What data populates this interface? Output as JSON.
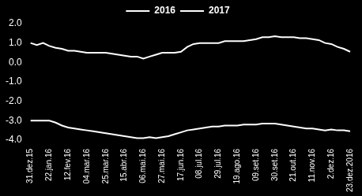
{
  "chart_data": {
    "type": "line",
    "categories": [
      "31.dez.15",
      null,
      null,
      "22.jan.16",
      null,
      null,
      "12.fev.16",
      null,
      null,
      "04.mar.16",
      null,
      null,
      "25.mar.16",
      null,
      null,
      "15.abr.16",
      null,
      null,
      "06.mai.16",
      null,
      null,
      "27.mai.16",
      null,
      null,
      "17.jun.16",
      null,
      null,
      "08.jul.16",
      null,
      null,
      "29.jul.16",
      null,
      null,
      "19.ago.16",
      null,
      null,
      "09.set.16",
      null,
      null,
      "30.set.16",
      null,
      null,
      "21.out.16",
      null,
      null,
      "11.nov.16",
      null,
      null,
      "2.dez.16",
      null,
      null,
      "23.dez.2016"
    ],
    "series": [
      {
        "name": "2016",
        "color": "#ffffff",
        "values": [
          1.0,
          0.9,
          1.0,
          0.85,
          0.75,
          0.7,
          0.6,
          0.6,
          0.55,
          0.5,
          0.5,
          0.5,
          0.5,
          0.45,
          0.4,
          0.35,
          0.3,
          0.3,
          0.2,
          0.3,
          0.4,
          0.5,
          0.5,
          0.5,
          0.55,
          0.8,
          0.95,
          1.0,
          1.0,
          1.0,
          1.0,
          1.1,
          1.1,
          1.1,
          1.1,
          1.15,
          1.2,
          1.3,
          1.3,
          1.35,
          1.3,
          1.3,
          1.3,
          1.25,
          1.25,
          1.2,
          1.15,
          1.0,
          0.95,
          0.8,
          0.7,
          0.55
        ]
      },
      {
        "name": "2017",
        "color": "#ffffff",
        "values": [
          -3.0,
          -3.0,
          -3.0,
          -3.0,
          -3.1,
          -3.25,
          -3.35,
          -3.4,
          -3.45,
          -3.5,
          -3.55,
          -3.6,
          -3.65,
          -3.7,
          -3.75,
          -3.8,
          -3.85,
          -3.9,
          -3.9,
          -3.85,
          -3.9,
          -3.85,
          -3.8,
          -3.7,
          -3.6,
          -3.5,
          -3.45,
          -3.4,
          -3.35,
          -3.3,
          -3.3,
          -3.25,
          -3.25,
          -3.25,
          -3.2,
          -3.2,
          -3.2,
          -3.15,
          -3.15,
          -3.15,
          -3.2,
          -3.25,
          -3.3,
          -3.35,
          -3.4,
          -3.4,
          -3.45,
          -3.5,
          -3.45,
          -3.5,
          -3.5,
          -3.55
        ]
      }
    ],
    "ylim": [
      -4,
      2
    ],
    "yticks": [
      {
        "value": -4,
        "label": "-4.0"
      },
      {
        "value": -3,
        "label": "-3.0"
      },
      {
        "value": -2,
        "label": "-2.0"
      },
      {
        "value": -1,
        "label": "-1.0"
      },
      {
        "value": 0,
        "label": "0.0"
      },
      {
        "value": 1,
        "label": "1.0"
      },
      {
        "value": 2,
        "label": "2.0"
      }
    ],
    "grid": false,
    "legend": "top"
  }
}
